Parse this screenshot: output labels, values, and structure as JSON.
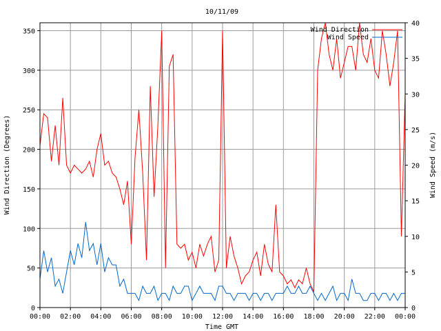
{
  "chart_data": {
    "type": "line",
    "title": "10/11/09",
    "xlabel": "Time GMT",
    "ylabel": "Wind Direction (Degrees)",
    "y2label": "Wind Speed (m/s)",
    "grid": true,
    "legend_position": "top-right",
    "x_ticks": [
      "00:00",
      "02:00",
      "04:00",
      "06:00",
      "08:00",
      "10:00",
      "12:00",
      "14:00",
      "16:00",
      "18:00",
      "20:00",
      "22:00",
      "00:00"
    ],
    "xlim_hours": [
      0,
      24
    ],
    "ylim": [
      0,
      360
    ],
    "y_ticks": [
      0,
      50,
      100,
      150,
      200,
      250,
      300,
      350
    ],
    "y2lim": [
      0,
      40
    ],
    "y2_ticks": [
      0,
      5,
      10,
      15,
      20,
      25,
      30,
      35,
      40
    ],
    "series": [
      {
        "name": "Wind Direction",
        "axis": "left",
        "color": "#ff0000",
        "x_hours": [
          0,
          0.25,
          0.5,
          0.75,
          1,
          1.25,
          1.5,
          1.75,
          2,
          2.25,
          2.5,
          2.75,
          3,
          3.25,
          3.5,
          3.75,
          4,
          4.25,
          4.5,
          4.75,
          5,
          5.25,
          5.5,
          5.75,
          6,
          6.25,
          6.5,
          6.75,
          7,
          7.25,
          7.5,
          7.75,
          8,
          8.25,
          8.5,
          8.75,
          9,
          9.25,
          9.5,
          9.75,
          10,
          10.25,
          10.5,
          10.75,
          11,
          11.25,
          11.5,
          11.75,
          12,
          12.25,
          12.5,
          12.75,
          13,
          13.25,
          13.5,
          13.75,
          14,
          14.25,
          14.5,
          14.75,
          15,
          15.25,
          15.5,
          15.75,
          16,
          16.25,
          16.5,
          16.75,
          17,
          17.25,
          17.5,
          17.75,
          18,
          18.25,
          18.5,
          18.75,
          19,
          19.25,
          19.5,
          19.75,
          20,
          20.25,
          20.5,
          20.75,
          21,
          21.25,
          21.5,
          21.75,
          22,
          22.25,
          22.5,
          22.75,
          23,
          23.25,
          23.5,
          23.75,
          24
        ],
        "values": [
          205,
          245,
          240,
          185,
          230,
          180,
          265,
          180,
          170,
          180,
          175,
          170,
          175,
          185,
          165,
          200,
          220,
          180,
          185,
          170,
          165,
          150,
          130,
          160,
          80,
          190,
          250,
          170,
          60,
          280,
          140,
          230,
          350,
          50,
          305,
          320,
          80,
          75,
          80,
          60,
          70,
          50,
          80,
          65,
          80,
          90,
          45,
          60,
          350,
          50,
          90,
          65,
          50,
          30,
          40,
          45,
          60,
          70,
          40,
          80,
          55,
          45,
          130,
          45,
          40,
          30,
          35,
          25,
          35,
          30,
          50,
          30,
          20,
          300,
          340,
          360,
          320,
          300,
          340,
          290,
          310,
          330,
          330,
          300,
          360,
          320,
          310,
          340,
          300,
          290,
          350,
          320,
          280,
          310,
          350,
          90,
          270
        ]
      },
      {
        "name": "Wind Speed",
        "axis": "right",
        "color": "#0066cc",
        "x_hours": [
          0,
          0.25,
          0.5,
          0.75,
          1,
          1.25,
          1.5,
          1.75,
          2,
          2.25,
          2.5,
          2.75,
          3,
          3.25,
          3.5,
          3.75,
          4,
          4.25,
          4.5,
          4.75,
          5,
          5.25,
          5.5,
          5.75,
          6,
          6.25,
          6.5,
          6.75,
          7,
          7.25,
          7.5,
          7.75,
          8,
          8.25,
          8.5,
          8.75,
          9,
          9.25,
          9.5,
          9.75,
          10,
          10.25,
          10.5,
          10.75,
          11,
          11.25,
          11.5,
          11.75,
          12,
          12.25,
          12.5,
          12.75,
          13,
          13.25,
          13.5,
          13.75,
          14,
          14.25,
          14.5,
          14.75,
          15,
          15.25,
          15.5,
          15.75,
          16,
          16.25,
          16.5,
          16.75,
          17,
          17.25,
          17.5,
          17.75,
          18,
          18.25,
          18.5,
          18.75,
          19,
          19.25,
          19.5,
          19.75,
          20,
          20.25,
          20.5,
          20.75,
          21,
          21.25,
          21.5,
          21.75,
          22,
          22.25,
          22.5,
          22.75,
          23,
          23.25,
          23.5,
          23.75,
          24
        ],
        "values": [
          4,
          8,
          5,
          7,
          3,
          4,
          2,
          5,
          8,
          6,
          9,
          7,
          12,
          8,
          9,
          6,
          9,
          5,
          7,
          6,
          6,
          3,
          4,
          2,
          2,
          2,
          1,
          3,
          2,
          2,
          3,
          1,
          2,
          2,
          1,
          3,
          2,
          2,
          3,
          3,
          1,
          2,
          3,
          2,
          2,
          2,
          1,
          3,
          3,
          2,
          2,
          1,
          2,
          2,
          2,
          1,
          2,
          2,
          1,
          2,
          2,
          1,
          2,
          2,
          2,
          3,
          2,
          2,
          3,
          2,
          2,
          3,
          2,
          1,
          2,
          1,
          2,
          3,
          1,
          2,
          2,
          1,
          4,
          2,
          2,
          1,
          1,
          2,
          2,
          1,
          2,
          2,
          1,
          2,
          1,
          2,
          2
        ]
      }
    ]
  }
}
